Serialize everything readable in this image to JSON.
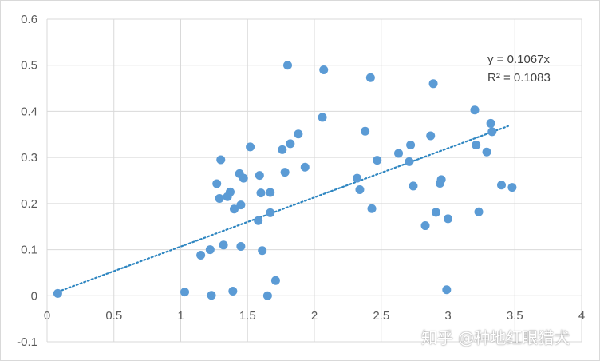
{
  "chart_data": {
    "type": "scatter",
    "xlim": [
      0,
      4
    ],
    "ylim": [
      -0.1,
      0.6
    ],
    "x_ticks": [
      "0",
      "0.5",
      "1",
      "1.5",
      "2",
      "2.5",
      "3",
      "3.5",
      "4"
    ],
    "y_ticks": [
      "0.6",
      "0.5",
      "0.4",
      "0.3",
      "0.2",
      "0.1",
      "0",
      "-0.1"
    ],
    "grid": true,
    "colors": {
      "points": "#5b9bd5",
      "trendline": "#2e86c1",
      "grid": "#d9d9d9"
    },
    "trendline": {
      "type": "linear-through-origin",
      "slope": 0.1067,
      "x_range": [
        0.08,
        3.45
      ],
      "equation": "y = 0.1067x",
      "r_squared": "R² = 0.1083"
    },
    "points": [
      [
        0.08,
        0.005
      ],
      [
        1.03,
        0.008
      ],
      [
        1.15,
        0.088
      ],
      [
        1.22,
        0.1
      ],
      [
        1.23,
        0.001
      ],
      [
        1.27,
        0.243
      ],
      [
        1.29,
        0.211
      ],
      [
        1.3,
        0.295
      ],
      [
        1.32,
        0.11
      ],
      [
        1.35,
        0.215
      ],
      [
        1.37,
        0.225
      ],
      [
        1.39,
        0.01
      ],
      [
        1.4,
        0.188
      ],
      [
        1.44,
        0.265
      ],
      [
        1.45,
        0.197
      ],
      [
        1.45,
        0.107
      ],
      [
        1.47,
        0.255
      ],
      [
        1.52,
        0.323
      ],
      [
        1.58,
        0.163
      ],
      [
        1.59,
        0.261
      ],
      [
        1.6,
        0.223
      ],
      [
        1.61,
        0.098
      ],
      [
        1.65,
        0.0
      ],
      [
        1.67,
        0.18
      ],
      [
        1.67,
        0.224
      ],
      [
        1.71,
        0.033
      ],
      [
        1.76,
        0.317
      ],
      [
        1.78,
        0.268
      ],
      [
        1.8,
        0.5
      ],
      [
        1.82,
        0.33
      ],
      [
        1.88,
        0.351
      ],
      [
        1.93,
        0.279
      ],
      [
        2.06,
        0.387
      ],
      [
        2.07,
        0.49
      ],
      [
        2.32,
        0.255
      ],
      [
        2.34,
        0.23
      ],
      [
        2.38,
        0.357
      ],
      [
        2.42,
        0.473
      ],
      [
        2.43,
        0.189
      ],
      [
        2.47,
        0.294
      ],
      [
        2.63,
        0.309
      ],
      [
        2.71,
        0.291
      ],
      [
        2.72,
        0.327
      ],
      [
        2.74,
        0.238
      ],
      [
        2.83,
        0.152
      ],
      [
        2.87,
        0.347
      ],
      [
        2.89,
        0.46
      ],
      [
        2.91,
        0.181
      ],
      [
        2.94,
        0.244
      ],
      [
        2.95,
        0.252
      ],
      [
        2.99,
        0.013
      ],
      [
        3.0,
        0.167
      ],
      [
        3.2,
        0.403
      ],
      [
        3.21,
        0.327
      ],
      [
        3.23,
        0.182
      ],
      [
        3.29,
        0.312
      ],
      [
        3.32,
        0.374
      ],
      [
        3.33,
        0.356
      ],
      [
        3.4,
        0.24
      ],
      [
        3.48,
        0.235
      ]
    ]
  },
  "watermark": "知乎 @种地红眼猎犬"
}
